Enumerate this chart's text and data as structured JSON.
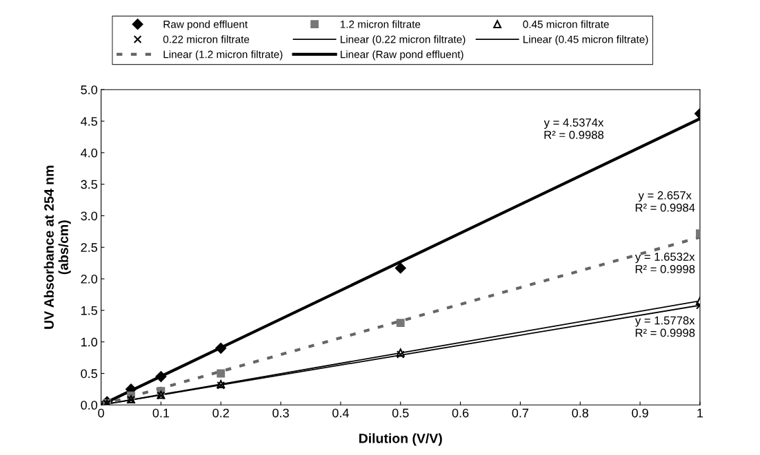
{
  "chart_data": {
    "type": "scatter",
    "xlabel": "Dilution (V/V)",
    "ylabel": "UV Absorbance at 254 nm\n(abs/cm)",
    "xlim": [
      0,
      1
    ],
    "xticks": [
      0,
      0.1,
      0.2,
      0.3,
      0.4,
      0.5,
      0.6,
      0.7,
      0.8,
      0.9,
      1
    ],
    "ylim": [
      0,
      5
    ],
    "yticks": [
      {
        "value": 0,
        "label": "0.0"
      },
      0.5,
      {
        "value": 1,
        "label": "1.0"
      },
      1.5,
      {
        "value": 2,
        "label": "2.0"
      },
      2.5,
      {
        "value": 3,
        "label": "3.0"
      },
      3.5,
      {
        "value": 4,
        "label": "4.0"
      },
      4.5,
      {
        "value": 5,
        "label": "5.0"
      }
    ],
    "grid": false,
    "legend": "top",
    "series": [
      {
        "name": "Raw pond effluent",
        "marker": "diamond",
        "color": "#000000",
        "x": [
          0.01,
          0.05,
          0.1,
          0.2,
          0.5,
          1
        ],
        "values": [
          0.05,
          0.25,
          0.45,
          0.9,
          2.17,
          4.62
        ]
      },
      {
        "name": "1.2 micron filtrate",
        "marker": "square",
        "color": "#777777",
        "x": [
          0.01,
          0.05,
          0.1,
          0.2,
          0.5,
          1
        ],
        "values": [
          0.03,
          0.15,
          0.22,
          0.5,
          1.3,
          2.72
        ]
      },
      {
        "name": "0.45 micron filtrate",
        "marker": "triangle",
        "color": "#000000",
        "x": [
          0.01,
          0.05,
          0.1,
          0.2,
          0.5,
          1
        ],
        "values": [
          0.02,
          0.09,
          0.16,
          0.33,
          0.83,
          1.65
        ]
      },
      {
        "name": "0.22 micron filtrate",
        "marker": "cross",
        "color": "#000000",
        "x": [
          0.01,
          0.05,
          0.1,
          0.2,
          0.5,
          1
        ],
        "values": [
          0.02,
          0.08,
          0.15,
          0.31,
          0.8,
          1.58
        ]
      },
      {
        "name": "Linear (0.22 micron filtrate)",
        "type": "line",
        "line_style": "solid",
        "color": "#000000",
        "x": [
          0,
          1
        ],
        "values": [
          0,
          1.58
        ]
      },
      {
        "name": "Linear (0.45 micron filtrate)",
        "type": "line",
        "line_style": "solid",
        "color": "#000000",
        "x": [
          0,
          1
        ],
        "values": [
          0,
          1.65
        ]
      },
      {
        "name": "Linear (1.2 micron filtrate)",
        "type": "line",
        "line_style": "dashed",
        "color": "#666666",
        "x": [
          0,
          1
        ],
        "values": [
          0,
          2.66
        ]
      },
      {
        "name": "Linear (Raw pond effluent)",
        "type": "line",
        "line_style": "solid",
        "color": "#000000",
        "x": [
          0,
          1
        ],
        "values": [
          0,
          4.54
        ]
      }
    ],
    "annotations": [
      "y = 4.5374x\nR² = 0.9988",
      "y = 2.657x\nR² = 0.9984",
      "y = 1.6532x\nR² = 0.9998",
      "y = 1.5778x\nR² = 0.9998"
    ]
  }
}
